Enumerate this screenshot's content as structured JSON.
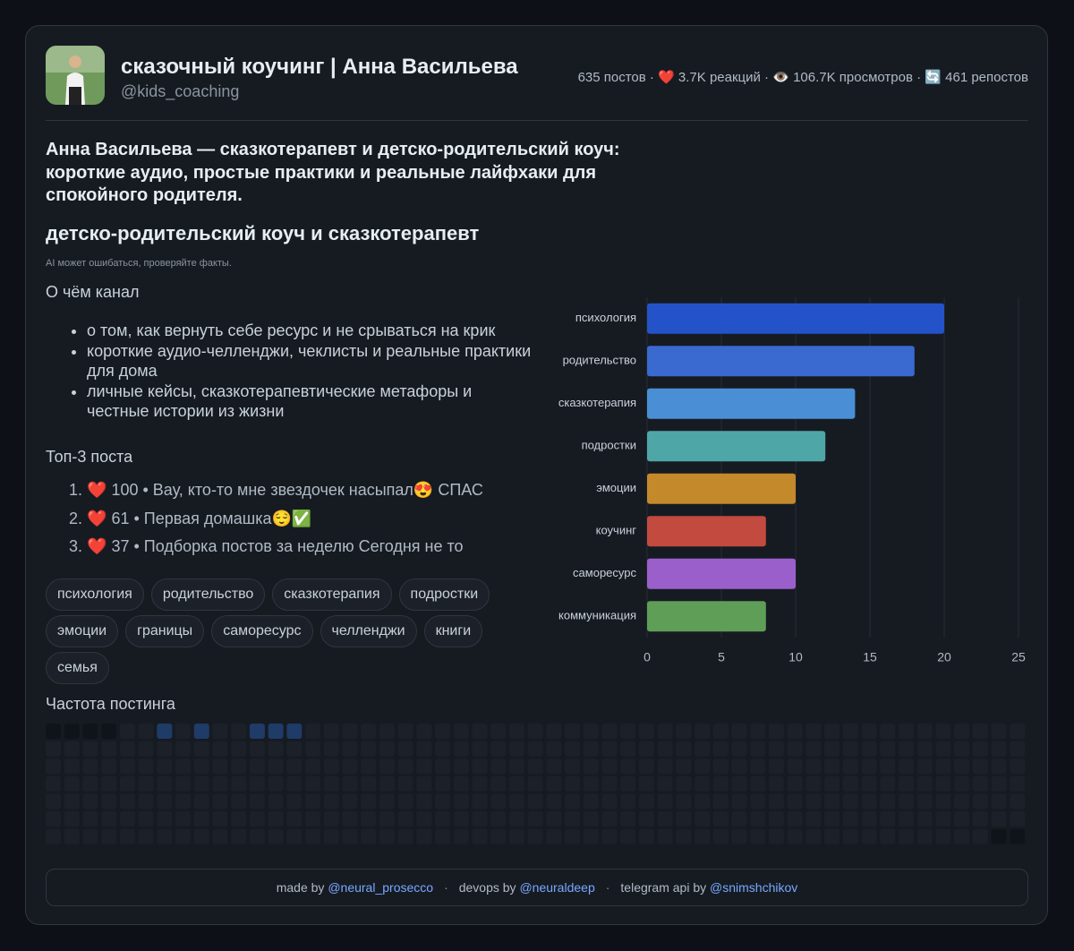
{
  "header": {
    "title": "сказочный коучинг | Анна Васильева",
    "handle": "@kids_coaching",
    "stats": [
      "635 постов",
      "❤️ 3.7K реакций",
      "👁️ 106.7K просмотров",
      "🔄 461 репостов"
    ]
  },
  "description": "Анна Васильева — сказкотерапевт и детско-родительский коуч: короткие аудио, простые практики и реальные лайфхаки для спокойного родителя.",
  "subtitle": "детско-родительский коуч и сказкотерапевт",
  "disclaimer": "AI может ошибаться, проверяйте факты.",
  "about": {
    "title": "О чём канал",
    "bullets": [
      "о том, как вернуть себе ресурс и не срываться на крик",
      "короткие аудио-челленджи, чеклисты и реальные практики для дома",
      "личные кейсы, сказкотерапевтические метафоры и честные истории из жизни"
    ]
  },
  "top_posts": {
    "title": "Топ-3 поста",
    "items": [
      {
        "reaction": "❤️",
        "likes": 100,
        "text": "Вау, кто-то мне звездочек насыпал😍 СПАС"
      },
      {
        "reaction": "❤️",
        "likes": 61,
        "text": "Первая домашка😌✅"
      },
      {
        "reaction": "❤️",
        "likes": 37,
        "text": "Подборка постов за неделю Сегодня не то"
      }
    ]
  },
  "tags": [
    "психология",
    "родительство",
    "сказкотерапия",
    "подростки",
    "эмоции",
    "границы",
    "саморесурс",
    "челленджи",
    "книги",
    "семья"
  ],
  "frequency": {
    "title": "Частота постинга",
    "levels": [
      [
        null,
        null,
        null,
        null,
        0,
        0,
        1,
        0,
        1,
        0,
        0,
        1,
        1,
        1,
        0,
        0,
        0,
        0,
        0,
        0,
        0,
        0,
        0,
        0,
        0,
        0,
        0,
        0,
        0,
        0,
        0,
        0,
        0,
        0,
        0,
        0,
        0,
        0,
        0,
        0,
        0,
        0,
        0,
        0,
        0,
        0,
        0,
        0,
        0,
        0,
        0,
        0,
        0
      ],
      [
        0,
        0,
        0,
        0,
        0,
        0,
        0,
        0,
        0,
        0,
        0,
        0,
        0,
        0,
        0,
        0,
        0,
        0,
        0,
        0,
        0,
        0,
        0,
        0,
        0,
        0,
        0,
        0,
        0,
        0,
        0,
        0,
        0,
        0,
        0,
        0,
        0,
        0,
        0,
        0,
        0,
        0,
        0,
        0,
        0,
        0,
        0,
        0,
        0,
        0,
        0,
        0,
        0
      ],
      [
        0,
        0,
        0,
        0,
        0,
        0,
        0,
        0,
        0,
        0,
        0,
        0,
        0,
        0,
        0,
        0,
        0,
        0,
        0,
        0,
        0,
        0,
        0,
        0,
        0,
        0,
        0,
        0,
        0,
        0,
        0,
        0,
        0,
        0,
        0,
        0,
        0,
        0,
        0,
        0,
        0,
        0,
        0,
        0,
        0,
        0,
        0,
        0,
        0,
        0,
        0,
        0,
        0
      ],
      [
        0,
        0,
        0,
        0,
        0,
        0,
        0,
        0,
        0,
        0,
        0,
        0,
        0,
        0,
        0,
        0,
        0,
        0,
        0,
        0,
        0,
        0,
        0,
        0,
        0,
        0,
        0,
        0,
        0,
        0,
        0,
        0,
        0,
        0,
        0,
        0,
        0,
        0,
        0,
        0,
        0,
        0,
        0,
        0,
        0,
        0,
        0,
        0,
        0,
        0,
        0,
        0,
        0
      ],
      [
        0,
        0,
        0,
        0,
        0,
        0,
        0,
        0,
        0,
        0,
        0,
        0,
        0,
        0,
        0,
        0,
        0,
        0,
        0,
        0,
        0,
        0,
        0,
        0,
        0,
        0,
        0,
        0,
        0,
        0,
        0,
        0,
        0,
        0,
        0,
        0,
        0,
        0,
        0,
        0,
        0,
        0,
        0,
        0,
        0,
        0,
        0,
        0,
        0,
        0,
        0,
        0,
        0
      ],
      [
        0,
        0,
        0,
        0,
        0,
        0,
        0,
        0,
        0,
        0,
        0,
        0,
        0,
        0,
        0,
        0,
        0,
        0,
        0,
        0,
        0,
        0,
        0,
        0,
        0,
        0,
        0,
        0,
        0,
        0,
        0,
        0,
        0,
        0,
        0,
        0,
        0,
        0,
        0,
        0,
        0,
        0,
        0,
        0,
        0,
        0,
        0,
        0,
        0,
        0,
        0,
        0,
        0
      ],
      [
        0,
        0,
        0,
        0,
        0,
        0,
        0,
        0,
        0,
        0,
        0,
        0,
        0,
        0,
        0,
        0,
        0,
        0,
        0,
        0,
        0,
        0,
        0,
        0,
        0,
        0,
        0,
        0,
        0,
        0,
        0,
        0,
        0,
        0,
        0,
        0,
        0,
        0,
        0,
        0,
        0,
        0,
        0,
        0,
        0,
        0,
        0,
        0,
        0,
        0,
        0,
        null,
        null
      ]
    ]
  },
  "chart_data": {
    "type": "bar",
    "orientation": "horizontal",
    "categories": [
      "психология",
      "родительство",
      "сказкотерапия",
      "подростки",
      "эмоции",
      "коучинг",
      "саморесурс",
      "коммуникация"
    ],
    "values": [
      20,
      18,
      14,
      12,
      10,
      8,
      10,
      8
    ],
    "colors": [
      "#2453c9",
      "#3a69d0",
      "#4a8fd6",
      "#4fa6a6",
      "#c4892a",
      "#c34a3e",
      "#9b5fcb",
      "#5e9e57"
    ],
    "xlim": [
      0,
      25
    ],
    "xticks": [
      0,
      5,
      10,
      15,
      20,
      25
    ],
    "grid": true
  },
  "footer": {
    "credits": [
      {
        "label": "made by",
        "handle": "@neural_prosecco"
      },
      {
        "label": "devops by",
        "handle": "@neuraldeep"
      },
      {
        "label": "telegram api by",
        "handle": "@snimshchikov"
      }
    ]
  }
}
